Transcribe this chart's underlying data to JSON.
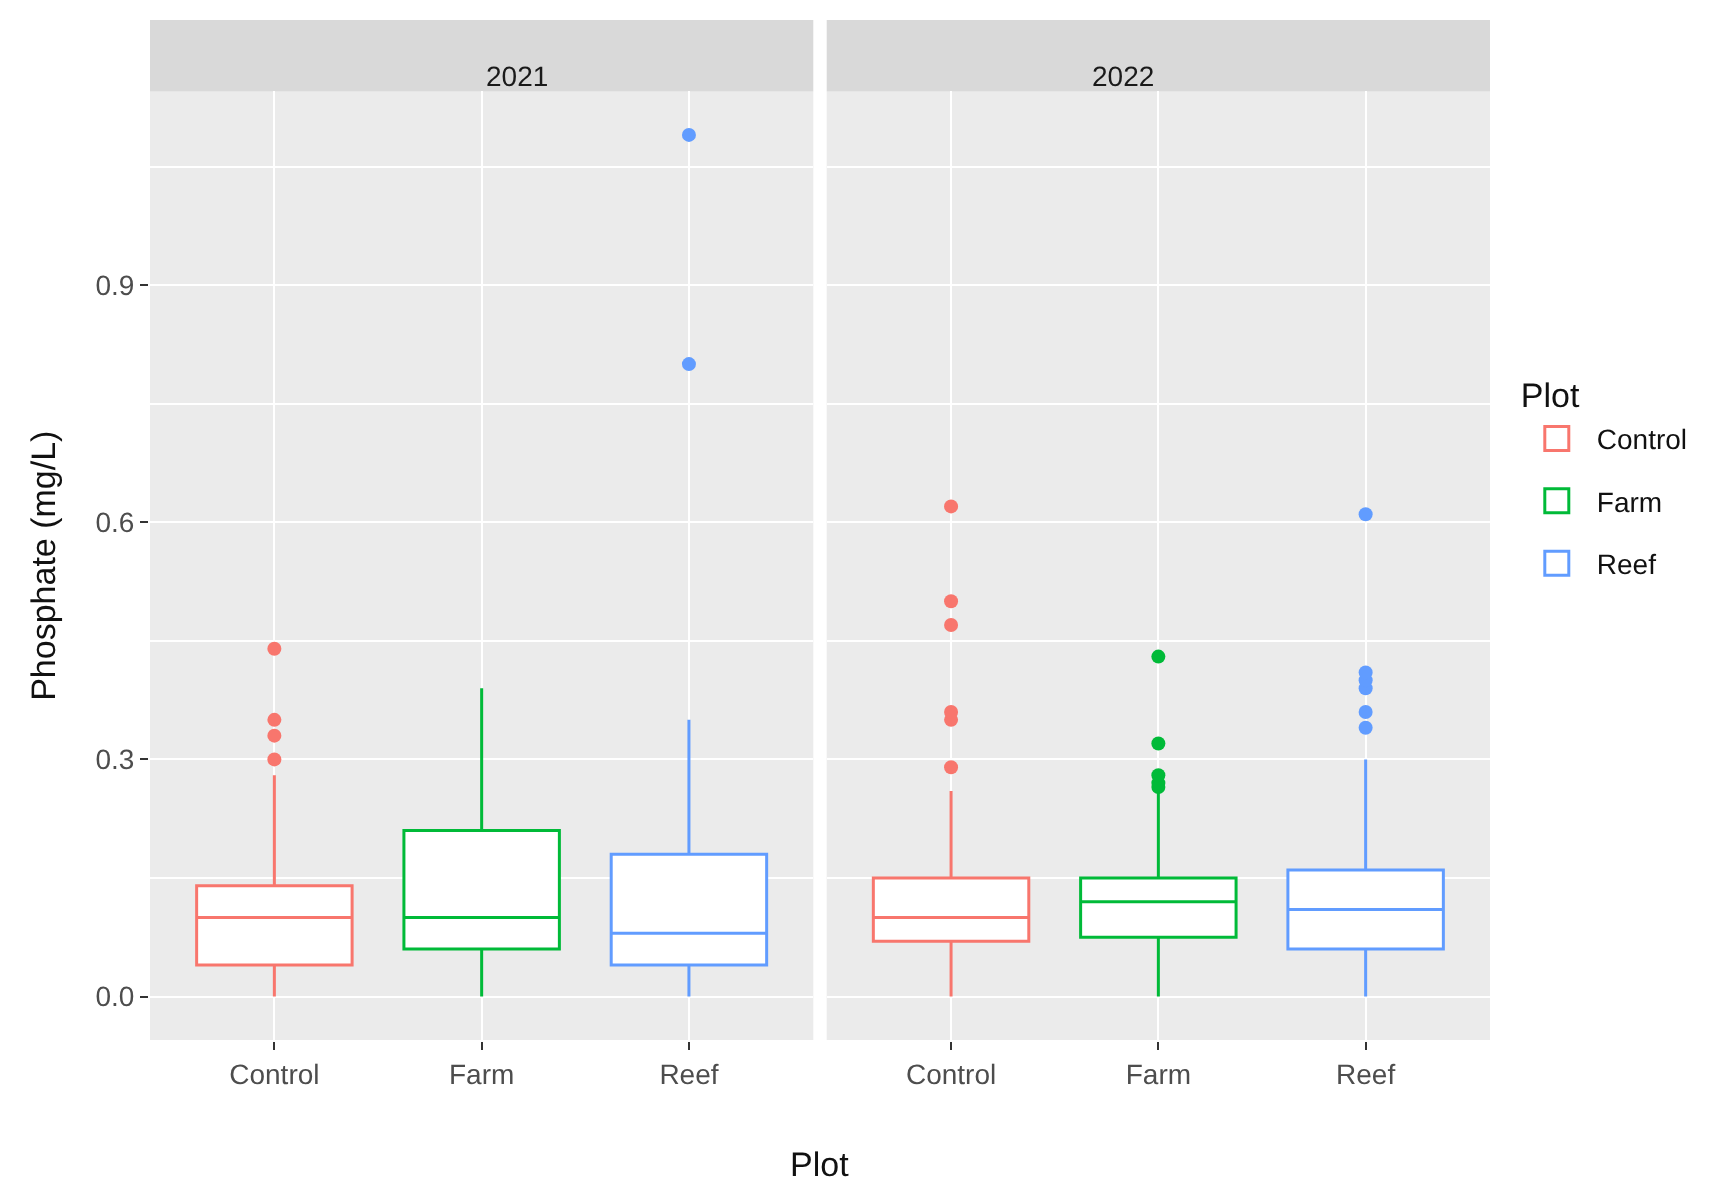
{
  "chart_data": [
    {
      "type": "box",
      "title": "2021",
      "ylabel": "Phosphate (mg/L)",
      "xlabel": "Plot",
      "categories": [
        "Control",
        "Farm",
        "Reef"
      ],
      "series": [
        {
          "color": "#f8766d",
          "boxes": [
            {
              "low": 0.0,
              "q1": 0.04,
              "median": 0.1,
              "q3": 0.14,
              "high": 0.28,
              "outliers": [
                0.3,
                0.33,
                0.35,
                0.44
              ]
            },
            null,
            null
          ]
        },
        {
          "color": "#00ba38",
          "boxes": [
            null,
            {
              "low": 0.0,
              "q1": 0.06,
              "median": 0.1,
              "q3": 0.21,
              "high": 0.39
            },
            null
          ]
        },
        {
          "color": "#619cff",
          "boxes": [
            null,
            null,
            {
              "low": 0.0,
              "q1": 0.04,
              "median": 0.08,
              "q3": 0.18,
              "high": 0.35,
              "outliers": [
                0.8,
                1.09
              ]
            }
          ]
        }
      ],
      "ylim": [
        -0.055,
        1.145
      ],
      "yticks": [
        {
          "value": 0,
          "label": "0.0"
        },
        0.3,
        0.6,
        0.9
      ],
      "grid": true
    },
    {
      "type": "box",
      "title": "2022",
      "legend_title": "Plot",
      "categories": [
        "Control",
        "Farm",
        "Reef"
      ],
      "series": [
        {
          "name": "Control",
          "color": "#f8766d",
          "boxes": [
            {
              "low": 0.0,
              "q1": 0.07,
              "median": 0.1,
              "q3": 0.15,
              "high": 0.26,
              "outliers": [
                0.29,
                0.35,
                0.36,
                0.47,
                0.5,
                0.62
              ]
            },
            null,
            null
          ]
        },
        {
          "name": "Farm",
          "color": "#00ba38",
          "boxes": [
            null,
            {
              "low": 0.0,
              "q1": 0.075,
              "median": 0.12,
              "q3": 0.15,
              "high": 0.26,
              "outliers": [
                0.265,
                0.27,
                0.28,
                0.32,
                0.43
              ]
            },
            null
          ]
        },
        {
          "name": "Reef",
          "color": "#619cff",
          "boxes": [
            null,
            null,
            {
              "low": 0.0,
              "q1": 0.06,
              "median": 0.11,
              "q3": 0.16,
              "high": 0.3,
              "outliers": [
                0.34,
                0.36,
                0.39,
                0.4,
                0.41,
                0.61
              ]
            }
          ]
        }
      ],
      "ylim": [
        -0.055,
        1.145
      ],
      "yticks": [
        0,
        0.3,
        0.6,
        0.9
      ],
      "grid": true,
      "legend": "right",
      "tick_labels": "x"
    }
  ]
}
